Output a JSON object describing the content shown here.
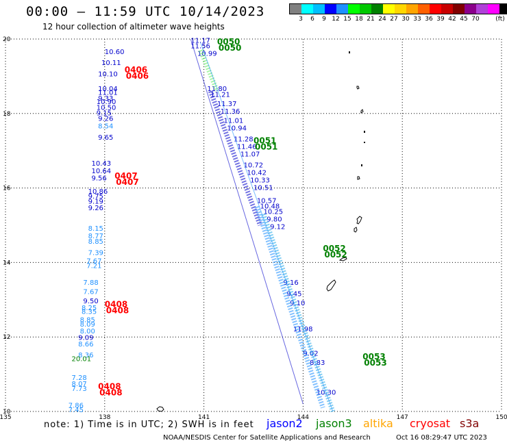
{
  "header": {
    "title": "00:00 – 11:59 UTC 10/14/2023",
    "subtitle": "12 hour collection of altimeter wave heights"
  },
  "legend": {
    "colors": [
      "#808080",
      "#00ffff",
      "#00bfff",
      "#0000ff",
      "#1e90ff",
      "#00ff00",
      "#00c800",
      "#008000",
      "#ffff00",
      "#ffd700",
      "#ffa500",
      "#ff6000",
      "#ff0000",
      "#c80000",
      "#800000",
      "#8b008b",
      "#b040d8",
      "#ff00ff",
      "#000000"
    ],
    "labels": [
      "3",
      "6",
      "9",
      "12",
      "15",
      "18",
      "21",
      "24",
      "27",
      "30",
      "33",
      "36",
      "39",
      "42",
      "45",
      "70"
    ],
    "unit": "(ft)"
  },
  "map": {
    "lon_range": [
      135,
      150
    ],
    "lat_range": [
      10,
      20
    ],
    "lon_ticks": [
      "135",
      "138",
      "141",
      "144",
      "147",
      "150"
    ],
    "lat_ticks": [
      "20",
      "18",
      "16",
      "14",
      "12",
      "10"
    ],
    "grid": "dotted"
  },
  "annotations": [
    {
      "text": "0050",
      "lon": 141.4,
      "lat": 19.85,
      "color": "#008000"
    },
    {
      "text": "0051",
      "lon": 142.5,
      "lat": 17.2,
      "color": "#008000"
    },
    {
      "text": "0052",
      "lon": 144.6,
      "lat": 14.3,
      "color": "#008000"
    },
    {
      "text": "0053",
      "lon": 145.8,
      "lat": 11.4,
      "color": "#008000"
    },
    {
      "text": "0406",
      "lon": 138.6,
      "lat": 19.1,
      "color": "#ff0000"
    },
    {
      "text": "0407",
      "lon": 138.3,
      "lat": 16.25,
      "color": "#ff0000"
    },
    {
      "text": "0408",
      "lon": 138.0,
      "lat": 12.8,
      "color": "#ff0000"
    },
    {
      "text": "0408",
      "lon": 137.8,
      "lat": 10.6,
      "color": "#ff0000"
    }
  ],
  "tracks": {
    "west": [
      {
        "value": "10.60",
        "lon": 138.0,
        "lat": 19.6,
        "color": "#0000cc"
      },
      {
        "value": "10.11",
        "lon": 137.9,
        "lat": 19.3,
        "color": "#0000cc"
      },
      {
        "value": "10.10",
        "lon": 137.8,
        "lat": 19.0,
        "color": "#0000cc"
      },
      {
        "value": "10.04",
        "lon": 137.8,
        "lat": 18.6,
        "color": "#0000cc"
      },
      {
        "value": "11.01",
        "lon": 137.8,
        "lat": 18.5,
        "color": "#0000cc"
      },
      {
        "value": "9.33",
        "lon": 137.8,
        "lat": 18.35,
        "color": "#0000cc"
      },
      {
        "value": "10.90",
        "lon": 137.75,
        "lat": 18.25,
        "color": "#0000cc"
      },
      {
        "value": "10.50",
        "lon": 137.75,
        "lat": 18.1,
        "color": "#0000cc"
      },
      {
        "value": "9.15",
        "lon": 137.75,
        "lat": 17.95,
        "color": "#0000cc"
      },
      {
        "value": "9.26",
        "lon": 137.8,
        "lat": 17.8,
        "color": "#0000cc"
      },
      {
        "value": "8.54",
        "lon": 137.8,
        "lat": 17.6,
        "color": "#1e90ff"
      },
      {
        "value": "9.65",
        "lon": 137.8,
        "lat": 17.3,
        "color": "#0000cc"
      },
      {
        "value": "10.43",
        "lon": 137.6,
        "lat": 16.6,
        "color": "#0000cc"
      },
      {
        "value": "10.64",
        "lon": 137.6,
        "lat": 16.4,
        "color": "#0000cc"
      },
      {
        "value": "9.56",
        "lon": 137.6,
        "lat": 16.2,
        "color": "#0000cc"
      },
      {
        "value": "10.86",
        "lon": 137.5,
        "lat": 15.85,
        "color": "#0000cc"
      },
      {
        "value": "9.75",
        "lon": 137.5,
        "lat": 15.72,
        "color": "#0000cc"
      },
      {
        "value": "9.19",
        "lon": 137.5,
        "lat": 15.58,
        "color": "#0000cc"
      },
      {
        "value": "9.26",
        "lon": 137.5,
        "lat": 15.4,
        "color": "#0000cc"
      },
      {
        "value": "8.15",
        "lon": 137.5,
        "lat": 14.85,
        "color": "#1e90ff"
      },
      {
        "value": "8.77",
        "lon": 137.5,
        "lat": 14.65,
        "color": "#1e90ff"
      },
      {
        "value": "8.85",
        "lon": 137.5,
        "lat": 14.5,
        "color": "#1e90ff"
      },
      {
        "value": "7.39",
        "lon": 137.5,
        "lat": 14.2,
        "color": "#1e90ff"
      },
      {
        "value": "7.67",
        "lon": 137.45,
        "lat": 13.98,
        "color": "#1e90ff"
      },
      {
        "value": "7.21",
        "lon": 137.45,
        "lat": 13.85,
        "color": "#1e90ff"
      },
      {
        "value": "7.88",
        "lon": 137.35,
        "lat": 13.4,
        "color": "#1e90ff"
      },
      {
        "value": "7.67",
        "lon": 137.35,
        "lat": 13.15,
        "color": "#1e90ff"
      },
      {
        "value": "9.50",
        "lon": 137.35,
        "lat": 12.9,
        "color": "#0000cc"
      },
      {
        "value": "8.25",
        "lon": 137.3,
        "lat": 12.72,
        "color": "#1e90ff"
      },
      {
        "value": "8.35",
        "lon": 137.3,
        "lat": 12.62,
        "color": "#1e90ff"
      },
      {
        "value": "8.85",
        "lon": 137.25,
        "lat": 12.4,
        "color": "#1e90ff"
      },
      {
        "value": "8.09",
        "lon": 137.25,
        "lat": 12.28,
        "color": "#1e90ff"
      },
      {
        "value": "8.00",
        "lon": 137.25,
        "lat": 12.1,
        "color": "#1e90ff"
      },
      {
        "value": "9.09",
        "lon": 137.2,
        "lat": 11.92,
        "color": "#0000cc"
      },
      {
        "value": "8.66",
        "lon": 137.2,
        "lat": 11.75,
        "color": "#1e90ff"
      },
      {
        "value": "8.36",
        "lon": 137.2,
        "lat": 11.45,
        "color": "#1e90ff"
      },
      {
        "value": "20.01",
        "lon": 137.0,
        "lat": 11.35,
        "color": "#008000"
      },
      {
        "value": "7.28",
        "lon": 137.0,
        "lat": 10.85,
        "color": "#1e90ff"
      },
      {
        "value": "8.07",
        "lon": 137.0,
        "lat": 10.68,
        "color": "#1e90ff"
      },
      {
        "value": "7.73",
        "lon": 137.0,
        "lat": 10.55,
        "color": "#1e90ff"
      },
      {
        "value": "7.86",
        "lon": 136.9,
        "lat": 10.1,
        "color": "#1e90ff"
      },
      {
        "value": "7.45",
        "lon": 136.9,
        "lat": 9.98,
        "color": "#1e90ff"
      }
    ],
    "east": [
      {
        "value": "11.17",
        "lon": 140.6,
        "lat": 19.9,
        "color": "#0000cc"
      },
      {
        "value": "11.56",
        "lon": 140.6,
        "lat": 19.75,
        "color": "#0000cc"
      },
      {
        "value": "10.99",
        "lon": 140.8,
        "lat": 19.55,
        "color": "#0000cc"
      },
      {
        "value": "11.80",
        "lon": 141.1,
        "lat": 18.6,
        "color": "#0000cc"
      },
      {
        "value": "11.21",
        "lon": 141.2,
        "lat": 18.45,
        "color": "#0000cc"
      },
      {
        "value": "11.37",
        "lon": 141.4,
        "lat": 18.2,
        "color": "#0000cc"
      },
      {
        "value": "11.36",
        "lon": 141.5,
        "lat": 18.0,
        "color": "#0000cc"
      },
      {
        "value": "11.01",
        "lon": 141.6,
        "lat": 17.75,
        "color": "#0000cc"
      },
      {
        "value": "10.94",
        "lon": 141.7,
        "lat": 17.55,
        "color": "#0000cc"
      },
      {
        "value": "11.28",
        "lon": 141.9,
        "lat": 17.25,
        "color": "#0000cc"
      },
      {
        "value": "11.46",
        "lon": 142.0,
        "lat": 17.05,
        "color": "#0000cc"
      },
      {
        "value": "11.07",
        "lon": 142.1,
        "lat": 16.85,
        "color": "#0000cc"
      },
      {
        "value": "10.72",
        "lon": 142.2,
        "lat": 16.55,
        "color": "#0000cc"
      },
      {
        "value": "10.42",
        "lon": 142.3,
        "lat": 16.35,
        "color": "#0000cc"
      },
      {
        "value": "10.33",
        "lon": 142.4,
        "lat": 16.15,
        "color": "#0000cc"
      },
      {
        "value": "10.51",
        "lon": 142.5,
        "lat": 15.95,
        "color": "#0000cc"
      },
      {
        "value": "10.57",
        "lon": 142.6,
        "lat": 15.6,
        "color": "#0000cc"
      },
      {
        "value": "10.48",
        "lon": 142.7,
        "lat": 15.45,
        "color": "#0000cc"
      },
      {
        "value": "10.25",
        "lon": 142.8,
        "lat": 15.3,
        "color": "#0000cc"
      },
      {
        "value": "9.80",
        "lon": 142.9,
        "lat": 15.1,
        "color": "#0000cc"
      },
      {
        "value": "9.12",
        "lon": 143.0,
        "lat": 14.9,
        "color": "#0000cc"
      },
      {
        "value": "9.16",
        "lon": 143.4,
        "lat": 13.4,
        "color": "#0000cc"
      },
      {
        "value": "9.45",
        "lon": 143.5,
        "lat": 13.1,
        "color": "#0000cc"
      },
      {
        "value": "9.10",
        "lon": 143.6,
        "lat": 12.85,
        "color": "#0000cc"
      },
      {
        "value": "11.98",
        "lon": 143.7,
        "lat": 12.15,
        "color": "#0000cc"
      },
      {
        "value": "9.02",
        "lon": 144.0,
        "lat": 11.5,
        "color": "#0000cc"
      },
      {
        "value": "8.83",
        "lon": 144.2,
        "lat": 11.25,
        "color": "#0000cc"
      },
      {
        "value": "10.30",
        "lon": 144.4,
        "lat": 10.45,
        "color": "#0000cc"
      }
    ]
  },
  "footer": {
    "note": "note:  1) Time is in UTC;  2) SWH is in feet",
    "satellites": [
      {
        "name": "jason2",
        "color": "#0000ff"
      },
      {
        "name": "jason3",
        "color": "#008000"
      },
      {
        "name": "altika",
        "color": "#ffa500"
      },
      {
        "name": "cryosat",
        "color": "#ff0000"
      },
      {
        "name": "s3a",
        "color": "#800000"
      }
    ],
    "credit": "NOAA/NESDIS Center for Satellite Applications and Research",
    "timestamp": "Oct 16 08:29:47 UTC 2023"
  }
}
